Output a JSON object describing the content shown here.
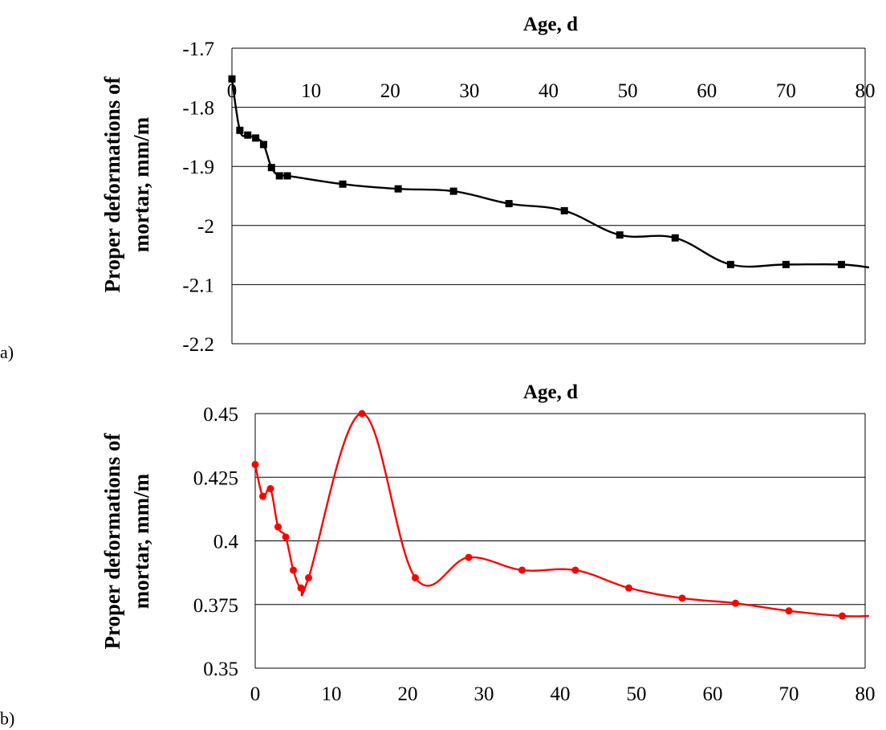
{
  "chart_data": [
    {
      "panel_label": "a)",
      "type": "line",
      "title": "Age, d",
      "xlabel": "Age, d",
      "ylabel_lines": [
        "Proper deformations of",
        "mortar, mm/m"
      ],
      "xlim": [
        0,
        80
      ],
      "ylim": [
        -2.2,
        -1.7
      ],
      "x_ticks": [
        0,
        10,
        20,
        30,
        40,
        50,
        60,
        70,
        80
      ],
      "y_ticks": [
        -1.7,
        -1.8,
        -1.9,
        -2,
        -2.1,
        -2.2
      ],
      "x_tick_labels": [
        "0",
        "10",
        "20",
        "30",
        "40",
        "50",
        "60",
        "70",
        "80"
      ],
      "y_tick_labels": [
        "-1.7",
        "-1.8",
        "-1.9",
        "-2",
        "-2.1",
        "-2.2"
      ],
      "x_axis_position": "top",
      "grid": "horizontal",
      "marker": "square",
      "color": "#000000",
      "series": [
        {
          "x": [
            0,
            1,
            2,
            3,
            4,
            5,
            6,
            7,
            14,
            21,
            28,
            35,
            42,
            49,
            56,
            63,
            70,
            77,
            80.5
          ],
          "y": [
            -1.752,
            -1.839,
            -1.847,
            -1.852,
            -1.863,
            -1.902,
            -1.916,
            -1.916,
            -1.93,
            -1.938,
            -1.942,
            -1.963,
            -1.975,
            -2.016,
            -2.021,
            -2.066,
            -2.066,
            -2.066,
            -2.071
          ],
          "markers": [
            true,
            true,
            true,
            true,
            true,
            true,
            true,
            true,
            true,
            true,
            true,
            true,
            true,
            true,
            true,
            true,
            true,
            true,
            false
          ]
        }
      ]
    },
    {
      "panel_label": "b)",
      "type": "line",
      "title": "Age, d",
      "xlabel": "Age, d",
      "ylabel_lines": [
        "Proper deformations of",
        "mortar, mm/m"
      ],
      "xlim": [
        0,
        80
      ],
      "ylim": [
        0.35,
        0.45
      ],
      "x_ticks": [
        0,
        10,
        20,
        30,
        40,
        50,
        60,
        70,
        80
      ],
      "y_ticks": [
        0.45,
        0.425,
        0.4,
        0.375,
        0.35
      ],
      "x_tick_labels": [
        "0",
        "10",
        "20",
        "30",
        "40",
        "50",
        "60",
        "70",
        "80"
      ],
      "y_tick_labels": [
        "0.45",
        "0.425",
        "0.4",
        "0.375",
        "0.35"
      ],
      "x_axis_position": "bottom",
      "grid": "horizontal",
      "marker": "circle",
      "color": "#ff0000",
      "series": [
        {
          "x": [
            0,
            1,
            2,
            3,
            4,
            5,
            6,
            7,
            14,
            21,
            28,
            35,
            42,
            49,
            56,
            63,
            70,
            77,
            80.5
          ],
          "y": [
            0.43,
            0.4175,
            0.4205,
            0.4055,
            0.4015,
            0.3885,
            0.3815,
            0.3855,
            0.45,
            0.3855,
            0.3935,
            0.3885,
            0.3885,
            0.3815,
            0.3775,
            0.3755,
            0.3725,
            0.3705,
            0.3705
          ],
          "markers": [
            true,
            true,
            true,
            true,
            true,
            true,
            true,
            true,
            true,
            true,
            true,
            true,
            true,
            true,
            true,
            true,
            true,
            true,
            false
          ]
        }
      ]
    }
  ]
}
